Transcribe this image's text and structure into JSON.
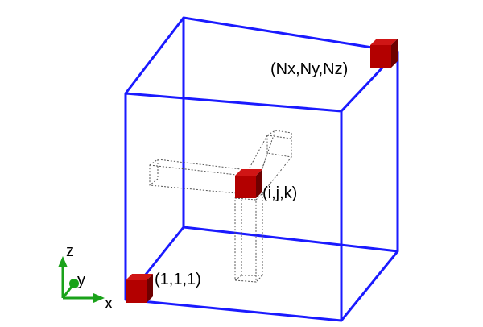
{
  "diagram": {
    "labels": {
      "origin": "(1,1,1)",
      "corner": "(Nx,Ny,Nz)",
      "center": "(i,j,k)"
    },
    "axes": {
      "x": "x",
      "y": "y",
      "z": "z"
    },
    "colors": {
      "cube_edges": "#1a1aff",
      "cell_fill": "#b30000",
      "cell_dark": "#6e0000",
      "cell_light": "#d01515",
      "axis_green": "#1aa21a",
      "dotted": "#555555"
    }
  }
}
